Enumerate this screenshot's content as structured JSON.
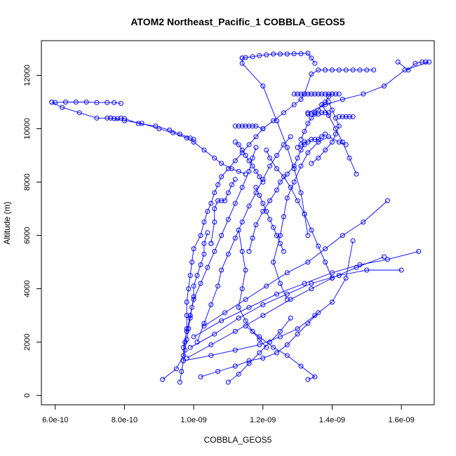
{
  "chart_data": {
    "type": "line",
    "title": "ATOM2 Northeast_Pacific_1 COBBLA_GEOS5",
    "xlabel": "COBBLA_GEOS5",
    "ylabel": "Altitude (m)",
    "xlim": [
      5.6e-10,
      1.695e-09
    ],
    "ylim": [
      -350,
      13300
    ],
    "x_ticks": [
      {
        "value": 6e-10,
        "label": "6.0e-10"
      },
      {
        "value": 8e-10,
        "label": "8.0e-10"
      },
      {
        "value": 1e-09,
        "label": "1.0e-09"
      },
      {
        "value": 1.2e-09,
        "label": "1.2e-09"
      },
      {
        "value": 1.4e-09,
        "label": "1.4e-09"
      },
      {
        "value": 1.6e-09,
        "label": "1.6e-09"
      }
    ],
    "y_ticks": [
      {
        "value": 0,
        "label": "0"
      },
      {
        "value": 2000,
        "label": "2000"
      },
      {
        "value": 4000,
        "label": "4000"
      },
      {
        "value": 6000,
        "label": "6000"
      },
      {
        "value": 8000,
        "label": "8000"
      },
      {
        "value": 10000,
        "label": "10000"
      },
      {
        "value": 12000,
        "label": "12000"
      }
    ],
    "grid": false,
    "color": "#0000ff",
    "marker": "open-circle",
    "series": [
      {
        "x": [
          9.1e-10,
          9.5e-10,
          9.7e-10,
          9.75e-10,
          9.8e-10,
          9.8e-10,
          9.8e-10,
          9.85e-10,
          9.9e-10,
          9.95e-10,
          1e-09,
          1.02e-09,
          1.03e-09,
          1.04e-09,
          1.05e-09,
          1.06e-09,
          1.07e-09,
          1.08e-09,
          1.1e-09,
          1.12e-09,
          1.14e-09,
          1.16e-09,
          1.18e-09,
          1.2e-09,
          1.23e-09,
          1.26e-09,
          1.29e-09,
          1.31e-09,
          1.32e-09
        ],
        "y": [
          600,
          1000,
          1500,
          2000,
          2500,
          3000,
          3500,
          4000,
          4500,
          5000,
          5500,
          6000,
          6500,
          6900,
          7200,
          7600,
          7900,
          8200,
          8500,
          8800,
          9100,
          9400,
          9700,
          10000,
          10300,
          10600,
          10900,
          11100,
          11300
        ]
      },
      {
        "x": [
          1.32e-09,
          1.34e-09,
          1.36e-09,
          1.38e-09,
          1.4e-09,
          1.42e-09,
          1.44e-09,
          1.46e-09,
          1.48e-09,
          1.5e-09,
          1.52e-09
        ],
        "y": [
          11300,
          12050,
          12200,
          12200,
          12200,
          12200,
          12200,
          12200,
          12200,
          12200,
          12200
        ]
      },
      {
        "x": [
          1.14e-09,
          1.15e-09,
          1.17e-09,
          1.19e-09,
          1.21e-09,
          1.23e-09,
          1.25e-09,
          1.27e-09,
          1.29e-09,
          1.31e-09,
          1.33e-09,
          1.34e-09,
          1.35e-09
        ],
        "y": [
          12650,
          12670,
          12700,
          12740,
          12770,
          12800,
          12800,
          12800,
          12810,
          12810,
          12830,
          12650,
          12450
        ]
      },
      {
        "x": [
          1.14e-09,
          1.14e-09,
          1.2e-09,
          1.24e-09,
          1.27e-09,
          1.29e-09,
          1.31e-09,
          1.32e-09,
          1.33e-09
        ],
        "y": [
          12650,
          12450,
          11600,
          10300,
          9300,
          8500,
          7600,
          6800,
          6000
        ]
      },
      {
        "x": [
          5.9e-10,
          6e-10,
          6.3e-10,
          6.6e-10,
          6.9e-10,
          7.2e-10,
          7.5e-10,
          7.7e-10,
          7.9e-10
        ],
        "y": [
          11000,
          10980,
          11000,
          11000,
          11000,
          10980,
          10980,
          10980,
          10950
        ]
      },
      {
        "x": [
          5.9e-10,
          6.2e-10,
          6.7e-10,
          7.2e-10,
          7.6e-10,
          8e-10,
          8.5e-10,
          9e-10,
          9.4e-10,
          9.8e-10,
          1e-09,
          1.03e-09,
          1.06e-09,
          1.08e-09,
          1.11e-09,
          1.13e-09,
          1.15e-09
        ],
        "y": [
          11000,
          10800,
          10600,
          10400,
          10400,
          10300,
          10200,
          10000,
          9850,
          9650,
          9500,
          9200,
          8900,
          8700,
          8500,
          8400,
          8300
        ]
      },
      {
        "x": [
          7.5e-10,
          7.6e-10,
          7.7e-10,
          7.8e-10,
          7.9e-10,
          8e-10,
          8.4e-10,
          8.9e-10,
          9.3e-10,
          9.6e-10,
          9.9e-10,
          1e-09
        ],
        "y": [
          10400,
          10400,
          10380,
          10380,
          10400,
          10380,
          10200,
          10100,
          9950,
          9800,
          9650,
          9600
        ]
      },
      {
        "x": [
          1.12e-09,
          1.13e-09,
          1.14e-09,
          1.15e-09,
          1.16e-09,
          1.17e-09,
          1.18e-09,
          1.2e-09,
          1.2e-09
        ],
        "y": [
          10100,
          10100,
          10100,
          10100,
          10100,
          10100,
          10100,
          10000,
          10000
        ]
      },
      {
        "x": [
          1.29e-09,
          1.3e-09,
          1.31e-09,
          1.32e-09,
          1.33e-09,
          1.34e-09,
          1.35e-09,
          1.36e-09,
          1.37e-09,
          1.38e-09,
          1.39e-09,
          1.4e-09,
          1.41e-09,
          1.42e-09
        ],
        "y": [
          11300,
          11300,
          11300,
          11300,
          11300,
          11300,
          11300,
          11300,
          11300,
          11300,
          11300,
          11300,
          11300,
          11300
        ]
      },
      {
        "x": [
          1.33e-09,
          1.34e-09,
          1.35e-09,
          1.36e-09,
          1.37e-09,
          1.38e-09,
          1.39e-09
        ],
        "y": [
          10550,
          10550,
          10550,
          10550,
          10600,
          10600,
          10600
        ]
      },
      {
        "x": [
          1.42e-09,
          1.43e-09,
          1.44e-09,
          1.45e-09,
          1.46e-09
        ],
        "y": [
          10450,
          10450,
          10450,
          10450,
          10450
        ]
      },
      {
        "x": [
          1.59e-09,
          1.62e-09,
          1.64e-09,
          1.66e-09,
          1.67e-09,
          1.68e-09,
          1.61e-09,
          1.55e-09,
          1.49e-09,
          1.43e-09,
          1.38e-09,
          1.33e-09
        ],
        "y": [
          12500,
          12200,
          12450,
          12500,
          12500,
          12500,
          12200,
          11600,
          11300,
          11100,
          10900,
          10600
        ]
      },
      {
        "x": [
          9.8e-10,
          1.05e-09,
          1.12e-09,
          1.2e-09,
          1.28e-09,
          1.34e-09,
          1.4e-09,
          1.47e-09,
          1.55e-09
        ],
        "y": [
          1400,
          1900,
          2400,
          3000,
          3600,
          4000,
          4400,
          4800,
          5200
        ]
      },
      {
        "x": [
          9.9e-10,
          1.06e-09,
          1.13e-09,
          1.2e-09,
          1.27e-09,
          1.34e-09,
          1.42e-09,
          1.5e-09,
          1.6e-09
        ],
        "y": [
          1800,
          2300,
          2900,
          3400,
          3800,
          4200,
          4500,
          4700,
          4700
        ]
      },
      {
        "x": [
          1e-09,
          1.08e-09,
          1.16e-09,
          1.24e-09,
          1.32e-09,
          1.4e-09,
          1.48e-09,
          1.56e-09,
          1.65e-09
        ],
        "y": [
          2200,
          2800,
          3300,
          3800,
          4200,
          4600,
          4900,
          5100,
          5400
        ]
      },
      {
        "x": [
          1.03e-09,
          1.09e-09,
          1.15e-09,
          1.21e-09,
          1.27e-09,
          1.33e-09,
          1.38e-09,
          1.43e-09,
          1.49e-09,
          1.56e-09
        ],
        "y": [
          2600,
          3100,
          3600,
          4100,
          4600,
          5000,
          5500,
          6000,
          6500,
          7300
        ]
      },
      {
        "x": [
          9.7e-10,
          1.05e-09,
          1.12e-09,
          1.19e-09,
          1.25e-09,
          1.3e-09,
          1.35e-09,
          1.4e-09,
          1.44e-09,
          1.46e-09
        ],
        "y": [
          1300,
          1500,
          1700,
          1900,
          2200,
          2500,
          3000,
          3500,
          4400,
          5800
        ]
      },
      {
        "x": [
          1.02e-09,
          1.07e-09,
          1.12e-09,
          1.16e-09,
          1.2e-09,
          1.24e-09,
          1.27e-09,
          1.3e-09,
          1.33e-09,
          1.36e-09
        ],
        "y": [
          700,
          900,
          1100,
          1300,
          1400,
          1600,
          1900,
          2300,
          2700,
          3100
        ]
      },
      {
        "x": [
          1.1e-09,
          1.13e-09,
          1.16e-09,
          1.19e-09,
          1.22e-09,
          1.25e-09,
          1.28e-09
        ],
        "y": [
          500,
          800,
          1200,
          1600,
          2000,
          2400,
          2900
        ]
      },
      {
        "x": [
          1.33e-09,
          1.35e-09,
          1.31e-09,
          1.27e-09,
          1.23e-09,
          1.19e-09,
          1.15e-09
        ],
        "y": [
          600,
          700,
          1100,
          1500,
          1800,
          2200,
          2600
        ]
      },
      {
        "x": [
          9.6e-10,
          9.65e-10,
          9.7e-10,
          9.75e-10,
          9.8e-10,
          9.85e-10,
          9.9e-10,
          9.95e-10,
          1e-09,
          1e-09,
          1.01e-09,
          1.02e-09,
          1.03e-09,
          1.03e-09,
          1.04e-09
        ],
        "y": [
          500,
          900,
          1300,
          1700,
          2100,
          2500,
          2900,
          3300,
          3700,
          4100,
          4500,
          4900,
          5300,
          5700,
          6100
        ]
      },
      {
        "x": [
          9.7e-10,
          9.8e-10,
          9.9e-10,
          1e-09,
          1.02e-09,
          1.04e-09,
          1.06e-09,
          1.08e-09,
          1.1e-09,
          1.12e-09,
          1.14e-09,
          1.16e-09,
          1.17e-09,
          1.18e-09
        ],
        "y": [
          1800,
          2400,
          3000,
          3600,
          4200,
          4800,
          5400,
          6000,
          6600,
          7200,
          7800,
          8400,
          8900,
          9300
        ]
      },
      {
        "x": [
          1.01e-09,
          1.03e-09,
          1.05e-09,
          1.07e-09,
          1.08e-09,
          1.1e-09,
          1.12e-09,
          1.14e-09,
          1.16e-09,
          1.18e-09,
          1.2e-09,
          1.22e-09,
          1.24e-09,
          1.26e-09,
          1.28e-09
        ],
        "y": [
          2000,
          2700,
          3400,
          4100,
          4700,
          5300,
          5900,
          6500,
          7100,
          7600,
          8100,
          8600,
          9000,
          9400,
          9700
        ]
      },
      {
        "x": [
          1.05e-09,
          1.05e-09,
          1.06e-09,
          1.06e-09,
          1.07e-09,
          1.08e-09,
          1.09e-09,
          1.1e-09,
          1.11e-09,
          1.12e-09
        ],
        "y": [
          5700,
          5700,
          6500,
          7000,
          7300,
          7300,
          7300,
          7600,
          7900,
          8100
        ]
      },
      {
        "x": [
          1.16e-09,
          1.17e-09,
          1.18e-09,
          1.2e-09,
          1.22e-09,
          1.24e-09,
          1.25e-09,
          1.27e-09,
          1.29e-09,
          1.3e-09,
          1.31e-09,
          1.32e-09
        ],
        "y": [
          5400,
          5900,
          6400,
          6900,
          7300,
          7700,
          8000,
          8300,
          8600,
          8900,
          9200,
          9400
        ]
      },
      {
        "x": [
          1.27e-09,
          1.25e-09,
          1.23e-09,
          1.25e-09,
          1.26e-09,
          1.27e-09,
          1.29e-09,
          1.31e-09,
          1.33e-09,
          1.36e-09,
          1.39e-09,
          1.42e-09,
          1.44e-09
        ],
        "y": [
          3600,
          4200,
          5000,
          6000,
          6700,
          7400,
          8000,
          8600,
          9100,
          9500,
          9700,
          9500,
          9400
        ]
      },
      {
        "x": [
          1.3e-09,
          1.31e-09,
          1.32e-09,
          1.33e-09,
          1.34e-09,
          1.35e-09,
          1.36e-09,
          1.37e-09,
          1.38e-09
        ],
        "y": [
          9300,
          9400,
          9500,
          9500,
          9600,
          9600,
          9600,
          9700,
          9800
        ]
      },
      {
        "x": [
          1.21e-09,
          1.22e-09,
          1.24e-09,
          1.26e-09,
          1.28e-09,
          1.3e-09,
          1.32e-09,
          1.34e-09,
          1.36e-09,
          1.38e-09,
          1.4e-09
        ],
        "y": [
          9200,
          8900,
          8500,
          8200,
          7800,
          7300,
          6800,
          6200,
          5600,
          5000,
          4400
        ]
      },
      {
        "x": [
          1.31e-09,
          1.32e-09,
          1.33e-09,
          1.34e-09,
          1.35e-09,
          1.36e-09,
          1.37e-09,
          1.38e-09,
          1.39e-09,
          1.4e-09
        ],
        "y": [
          9600,
          9900,
          10200,
          10400,
          10600,
          10700,
          10900,
          11000,
          11200,
          11300
        ]
      },
      {
        "x": [
          1.39e-09,
          1.4e-09,
          1.41e-09,
          1.42e-09,
          1.41e-09,
          1.4e-09,
          1.38e-09,
          1.36e-09,
          1.34e-09
        ],
        "y": [
          11000,
          10700,
          10400,
          10100,
          9800,
          9500,
          9200,
          8900,
          8700
        ]
      },
      {
        "x": [
          1.37e-09,
          1.39e-09,
          1.41e-09,
          1.43e-09,
          1.45e-09,
          1.47e-09
        ],
        "y": [
          10900,
          10500,
          10000,
          9500,
          8900,
          8300
        ]
      },
      {
        "x": [
          1.12e-09,
          1.13e-09,
          1.14e-09,
          1.15e-09,
          1.16e-09,
          1.17e-09,
          1.18e-09,
          1.19e-09,
          1.2e-09
        ],
        "y": [
          9500,
          9400,
          9200,
          9000,
          8800,
          8600,
          8400,
          8200,
          8000
        ]
      },
      {
        "x": [
          1.18e-09,
          1.19e-09,
          1.2e-09,
          1.21e-09,
          1.22e-09,
          1.23e-09,
          1.24e-09,
          1.25e-09,
          1.26e-09
        ],
        "y": [
          7800,
          7500,
          7200,
          6900,
          6600,
          6300,
          6000,
          5700,
          5400
        ]
      },
      {
        "x": [
          1.13e-09,
          1.14e-09,
          1.15e-09,
          1.14e-09,
          1.13e-09,
          1.15e-09,
          1.17e-09,
          1.19e-09,
          1.21e-09
        ],
        "y": [
          6200,
          5400,
          4700,
          4000,
          3300,
          2800,
          2400,
          2100,
          1800
        ]
      }
    ]
  }
}
